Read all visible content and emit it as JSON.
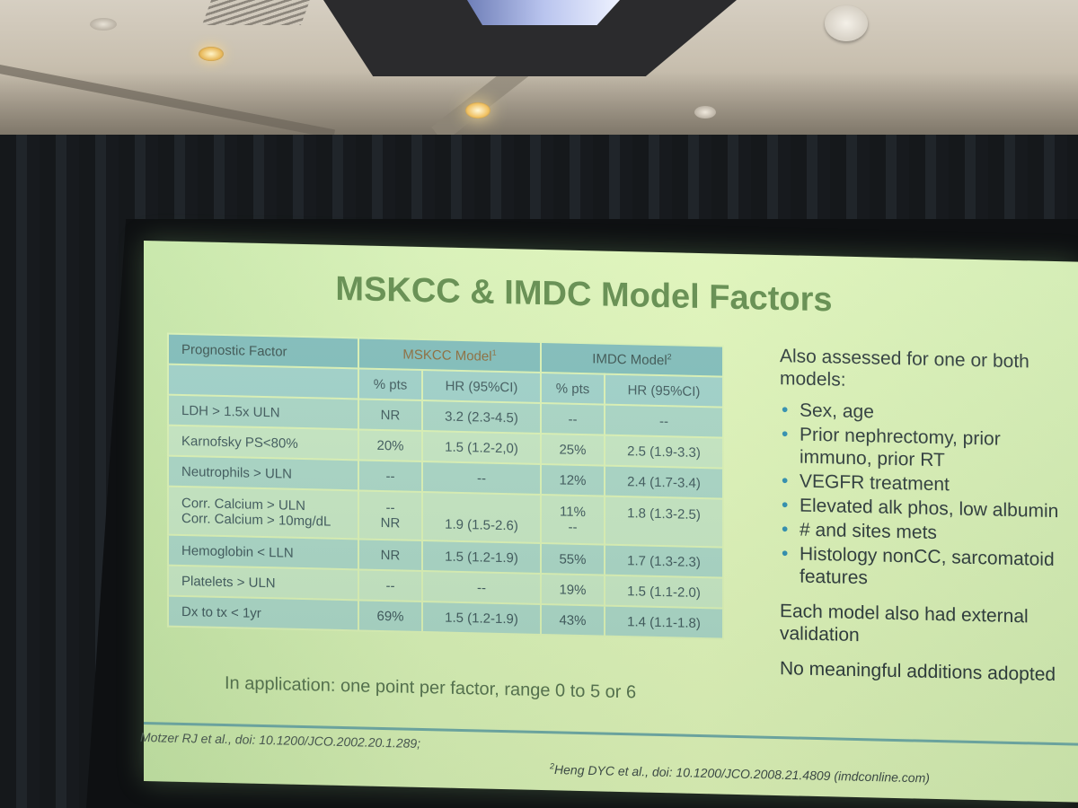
{
  "slide": {
    "title": "MSKCC & IMDC Model Factors",
    "table": {
      "header": {
        "factor": "Prognostic Factor",
        "mskcc": "MSKCC Model",
        "mskcc_sup": "1",
        "imdc": "IMDC Model",
        "imdc_sup": "2"
      },
      "subheader": [
        "% pts",
        "HR (95%CI)",
        "% pts",
        "HR (95%CI)"
      ],
      "rows": [
        {
          "factor": "LDH > 1.5x ULN",
          "m_pts": "NR",
          "m_hr": "3.2 (2.3-4.5)",
          "i_pts": "--",
          "i_hr": "--"
        },
        {
          "factor": "Karnofsky PS<80%",
          "m_pts": "20%",
          "m_hr": "1.5 (1.2-2,0)",
          "i_pts": "25%",
          "i_hr": "2.5 (1.9-3.3)"
        },
        {
          "factor": "Neutrophils > ULN",
          "m_pts": "--",
          "m_hr": "--",
          "i_pts": "12%",
          "i_hr": "2.4 (1.7-3.4)"
        },
        {
          "factor": "Corr. Calcium > ULN",
          "factor2": "Corr. Calcium > 10mg/dL",
          "m_pts": "--",
          "m_pts2": "NR",
          "m_hr": "",
          "m_hr2": "1.9 (1.5-2.6)",
          "i_pts": "11%",
          "i_pts2": "--",
          "i_hr": "1.8 (1.3-2.5)",
          "i_hr2": ""
        },
        {
          "factor": "Hemoglobin < LLN",
          "m_pts": "NR",
          "m_hr": "1.5 (1.2-1.9)",
          "i_pts": "55%",
          "i_hr": "1.7 (1.3-2.3)"
        },
        {
          "factor": "Platelets > ULN",
          "m_pts": "--",
          "m_hr": "--",
          "i_pts": "19%",
          "i_hr": "1.5 (1.1-2.0)"
        },
        {
          "factor": "Dx to tx < 1yr",
          "m_pts": "69%",
          "m_hr": "1.5 (1.2-1.9)",
          "i_pts": "43%",
          "i_hr": "1.4 (1.1-1.8)"
        }
      ]
    },
    "application_note": "In application: one point per factor, range 0 to 5 or 6",
    "right": {
      "heading": "Also assessed for one or both models:",
      "bullets": [
        "Sex, age",
        "Prior nephrectomy, prior immuno, prior RT",
        "VEGFR treatment",
        "Elevated alk phos, low albumin",
        "# and sites mets",
        "Histology nonCC, sarcomatoid features"
      ],
      "validation": "Each model also had external validation",
      "no_additions": "No meaningful additions adopted"
    },
    "footnotes": {
      "left": "Motzer RJ et al., doi: 10.1200/JCO.2002.20.1.289;",
      "right_sup": "2",
      "right": "Heng DYC et al., doi: 10.1200/JCO.2008.21.4809 (imdconline.com)"
    },
    "bullet_glyph": "•",
    "colors": {
      "slide_bg": "#d6f0b4",
      "title": "#5f8a4a",
      "table_header": "#7fbcb9",
      "table_row_a": "#a8d5c4",
      "table_row_b": "#c4e5c1",
      "bullet": "#2f8fb0"
    }
  }
}
